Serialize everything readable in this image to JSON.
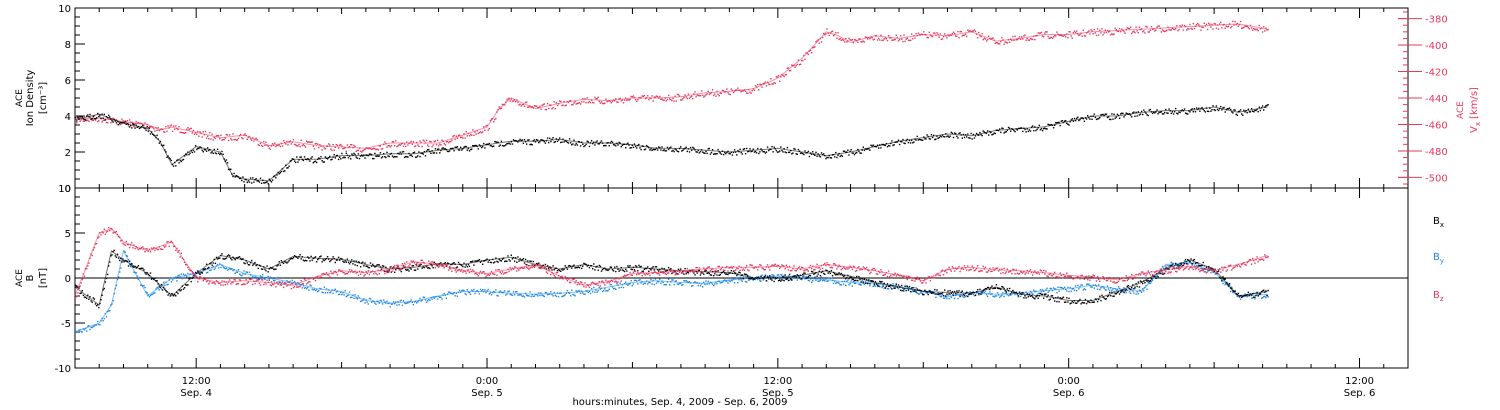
{
  "footer": {
    "xlabel": "hours:minutes, Sep.  4, 2009 - Sep.  6, 2009",
    "x_ticks": [
      {
        "hour": 12,
        "time": "12:00",
        "date": "Sep. 4"
      },
      {
        "hour": 24,
        "time": "0:00",
        "date": "Sep. 5"
      },
      {
        "hour": 36,
        "time": "12:00",
        "date": "Sep. 5"
      },
      {
        "hour": 48,
        "time": "0:00",
        "date": "Sep. 6"
      },
      {
        "hour": 60,
        "time": "12:00",
        "date": "Sep. 6"
      }
    ]
  },
  "colors": {
    "bx": "#000000",
    "by": "#1e88e5",
    "bz": "#e8385f",
    "vx": "#e8385f",
    "density": "#000000"
  },
  "chart_data": [
    {
      "type": "scatter",
      "panel": "top",
      "xlim": [
        7,
        62
      ],
      "ylabel_left": [
        "ACE",
        "Ion Density",
        "[cm⁻³]"
      ],
      "ylabel_right": [
        "ACE",
        "V",
        "x",
        "[km/s]"
      ],
      "ylim_left": [
        0,
        10
      ],
      "ylim_right": [
        -508,
        -372
      ],
      "yticks_left": [
        "0",
        "2",
        "4",
        "6",
        "8",
        "10"
      ],
      "yticks_right": [
        "-500",
        "-480",
        "-460",
        "-440",
        "-420",
        "-400",
        "-380"
      ],
      "series": [
        {
          "name": "",
          "axis": "left",
          "color": "#000000",
          "x": [
            7,
            8,
            9,
            10,
            10.5,
            11,
            12,
            13,
            13.5,
            14,
            15,
            16,
            17,
            18,
            19,
            20,
            21,
            22,
            23,
            24,
            25,
            26,
            27,
            28,
            29,
            30,
            31,
            32,
            33,
            34,
            35,
            36,
            37,
            38,
            39,
            40,
            41,
            42,
            43,
            44,
            45,
            46,
            47,
            48,
            49,
            50,
            51,
            52,
            53,
            54,
            55,
            56.2
          ],
          "y": [
            3.8,
            4.1,
            3.6,
            3.3,
            2.6,
            1.3,
            2.3,
            2.0,
            0.7,
            0.5,
            0.4,
            1.6,
            1.6,
            1.8,
            1.8,
            1.9,
            1.9,
            2.1,
            2.2,
            2.4,
            2.6,
            2.6,
            2.7,
            2.5,
            2.5,
            2.4,
            2.2,
            2.2,
            2.1,
            2.0,
            2.1,
            2.2,
            2.0,
            1.8,
            2.0,
            2.3,
            2.6,
            2.8,
            3.0,
            2.9,
            3.2,
            3.3,
            3.4,
            3.7,
            4.0,
            4.0,
            4.2,
            4.3,
            4.3,
            4.5,
            4.2,
            4.5
          ]
        },
        {
          "name": "",
          "axis": "right",
          "color": "#e8385f",
          "x": [
            7,
            8,
            9,
            10,
            10.5,
            11,
            12,
            13,
            14,
            15,
            16,
            17,
            18,
            19,
            20,
            21,
            22,
            23,
            24,
            24.5,
            25,
            26,
            27,
            28,
            29,
            30,
            31,
            32,
            33,
            34,
            35,
            36,
            37,
            38,
            38.5,
            39,
            40,
            41,
            42,
            43,
            44,
            45,
            46,
            47,
            48,
            49,
            50,
            51,
            52,
            53,
            54,
            55,
            56.2
          ],
          "y": [
            -456,
            -455,
            -458,
            -460,
            -464,
            -462,
            -466,
            -470,
            -468,
            -476,
            -473,
            -476,
            -477,
            -478,
            -474,
            -474,
            -474,
            -468,
            -462,
            -448,
            -440,
            -448,
            -444,
            -441,
            -442,
            -440,
            -440,
            -439,
            -436,
            -435,
            -433,
            -425,
            -410,
            -390,
            -393,
            -398,
            -393,
            -395,
            -392,
            -393,
            -390,
            -397,
            -395,
            -392,
            -392,
            -390,
            -389,
            -388,
            -387,
            -386,
            -385,
            -384,
            -388
          ]
        }
      ]
    },
    {
      "type": "scatter",
      "panel": "bottom",
      "xlim": [
        7,
        62
      ],
      "ylabel_left": [
        "ACE",
        "B",
        "[nT]"
      ],
      "ylim": [
        -10,
        10
      ],
      "yticks": [
        "-10",
        "-5",
        "0",
        "5",
        "10"
      ],
      "series": [
        {
          "name": "B",
          "sub": "x",
          "color": "#000000",
          "x": [
            7,
            8,
            8.5,
            9,
            10,
            11,
            12,
            13,
            14,
            15,
            16,
            17,
            18,
            19,
            20,
            21,
            22,
            23,
            24,
            25,
            26,
            27,
            28,
            29,
            30,
            31,
            32,
            33,
            34,
            35,
            36,
            37,
            38,
            39,
            40,
            41,
            42,
            43,
            44,
            45,
            46,
            47,
            48,
            49,
            50,
            51,
            52,
            53,
            54,
            55,
            56.2
          ],
          "y": [
            -1,
            -3,
            3,
            2,
            0.5,
            -2,
            0.5,
            2.5,
            2,
            1,
            2.4,
            2.2,
            2.1,
            1.5,
            1,
            1.2,
            1.6,
            1.5,
            2.0,
            2.3,
            1.5,
            1.0,
            1.5,
            1.0,
            1.2,
            1.0,
            0.8,
            0.7,
            0.6,
            0,
            0,
            0.3,
            0.8,
            0.2,
            -0.5,
            -1,
            -1.5,
            -1.6,
            -1.7,
            -1,
            -1.8,
            -2,
            -2.5,
            -2.5,
            -1.5,
            -0.5,
            1,
            2,
            1,
            -2,
            -1.5
          ]
        },
        {
          "name": "B",
          "sub": "y",
          "color": "#1e88e5",
          "x": [
            7,
            8,
            8.5,
            9,
            10,
            11,
            12,
            13,
            14,
            15,
            16,
            17,
            18,
            19,
            20,
            21,
            22,
            23,
            24,
            25,
            26,
            27,
            28,
            29,
            30,
            31,
            32,
            33,
            34,
            35,
            36,
            37,
            38,
            39,
            40,
            41,
            42,
            43,
            44,
            45,
            46,
            47,
            48,
            49,
            50,
            51,
            52,
            53,
            54,
            55,
            56.2
          ],
          "y": [
            -6,
            -5,
            -3,
            3,
            -2,
            0,
            0.5,
            1.5,
            0.5,
            0,
            -0.5,
            -1.2,
            -1.5,
            -2.5,
            -2.8,
            -2.6,
            -2,
            -1.5,
            -1.5,
            -1.7,
            -1.8,
            -1.7,
            -1.5,
            -1.0,
            -0.5,
            -0.3,
            -0.5,
            -0.6,
            -0.2,
            0,
            0.2,
            0,
            -0.2,
            -0.5,
            -0.6,
            -1,
            -1.5,
            -2.1,
            -1.6,
            -1.8,
            -1.7,
            -1.4,
            -1.2,
            -0.8,
            -1.2,
            -1.5,
            1.5,
            1.7,
            0.7,
            -2.1,
            -1.8
          ]
        },
        {
          "name": "B",
          "sub": "z",
          "color": "#e8385f",
          "x": [
            7,
            8,
            8.5,
            9,
            10,
            11,
            12,
            13,
            14,
            15,
            16,
            17,
            18,
            19,
            20,
            21,
            22,
            23,
            24,
            25,
            26,
            27,
            28,
            29,
            30,
            31,
            32,
            33,
            34,
            35,
            36,
            37,
            38,
            39,
            40,
            41,
            42,
            43,
            44,
            45,
            46,
            47,
            48,
            49,
            50,
            51,
            52,
            53,
            54,
            55,
            56.2
          ],
          "y": [
            -2,
            5,
            5.5,
            4,
            3,
            4,
            0,
            -0.5,
            -0.3,
            -0.5,
            -0.8,
            0.2,
            0.8,
            0.6,
            1.0,
            1.8,
            1.5,
            0.8,
            0.5,
            1.0,
            1.5,
            0.2,
            -0.8,
            -0.4,
            0.5,
            0.6,
            0.8,
            1.0,
            1.2,
            1.2,
            1.3,
            1.0,
            1.5,
            1.2,
            0.8,
            0.3,
            -0.3,
            1.0,
            1.2,
            0.9,
            0.8,
            0.6,
            0.3,
            0.1,
            -0.2,
            0.5,
            0.9,
            1.3,
            0.8,
            1.5,
            2.5
          ]
        }
      ]
    }
  ]
}
